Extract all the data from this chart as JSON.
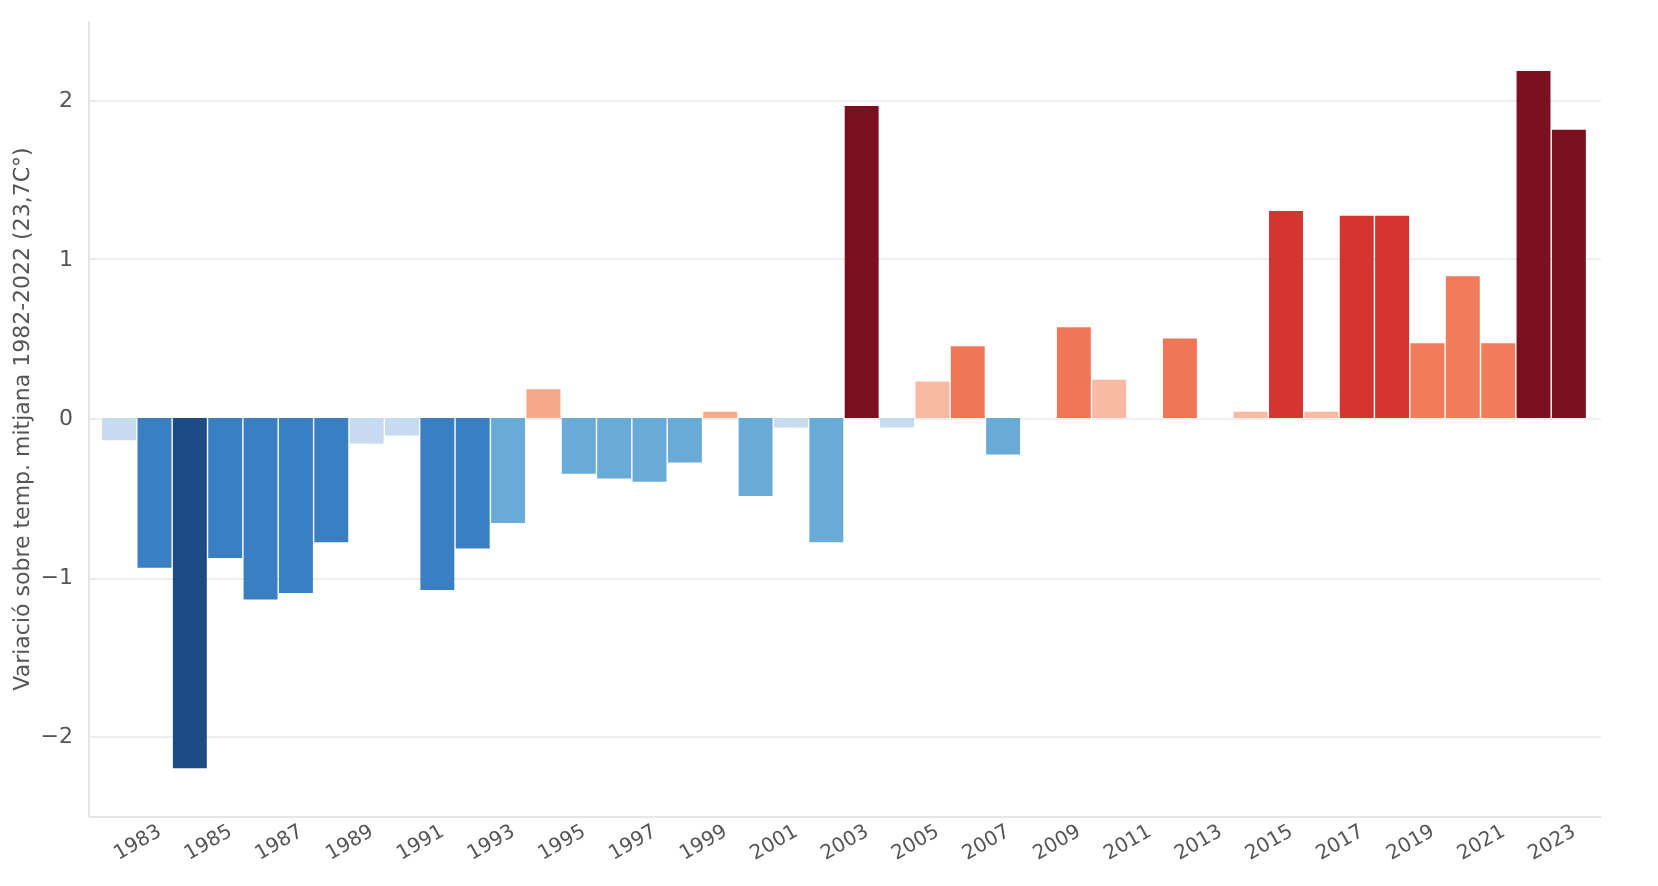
{
  "chart_data": {
    "type": "bar",
    "ylabel": "Variació sobre temp. mitjana 1982-2022 (23,7C°)",
    "categories": [
      null,
      "1983",
      null,
      "1985",
      null,
      "1987",
      null,
      "1989",
      null,
      "1991",
      null,
      "1993",
      null,
      "1995",
      null,
      "1997",
      null,
      "1999",
      null,
      "2001",
      null,
      "2003",
      null,
      "2005",
      null,
      "2007",
      null,
      "2009",
      null,
      "2011",
      null,
      "2013",
      null,
      "2015",
      null,
      "2017",
      null,
      "2019",
      null,
      "2021",
      null,
      "2023"
    ],
    "values": [
      -0.14,
      -0.94,
      -2.2,
      -0.88,
      -1.14,
      -1.1,
      -0.78,
      -0.16,
      -0.11,
      -1.08,
      -0.82,
      -0.66,
      0.18,
      -0.35,
      -0.38,
      -0.4,
      -0.28,
      0.04,
      -0.49,
      -0.06,
      -0.78,
      1.96,
      -0.06,
      0.23,
      0.45,
      -0.23,
      0,
      0.57,
      0.24,
      null,
      0.5,
      null,
      0.04,
      1.3,
      0.04,
      1.27,
      1.27,
      0.47,
      0.89,
      0.47,
      2.18,
      1.81
    ],
    "colors": [
      "#c6dbef",
      "#3a7fc1",
      "#1e4a86",
      "#3a7fc1",
      "#3a7fc1",
      "#3a7fc1",
      "#3a7fc1",
      "#c6dbef",
      "#c6dbef",
      "#3a7fc1",
      "#3a7fc1",
      "#6aaad6",
      "#f4a98a",
      "#6aaad6",
      "#6aaad6",
      "#6aaad6",
      "#6aaad6",
      "#f4a98a",
      "#6aaad6",
      "#c6dbef",
      "#6aaad6",
      "#7a1020",
      "#c6dbef",
      "#f7bba4",
      "#ef7656",
      "#6aaad6",
      "#f7bba4",
      "#ef7656",
      "#f7bba4",
      "#c6dbef",
      "#ef7656",
      "#c6dbef",
      "#f7bba4",
      "#d6342e",
      "#f7bba4",
      "#d6342e",
      "#d6342e",
      "#f17c5c",
      "#f17c5c",
      "#f17c5c",
      "#7a1020",
      "#7a1020"
    ],
    "ylim": [
      -2.5,
      2.5
    ],
    "yticks": [
      -2,
      -1,
      0,
      1,
      2
    ],
    "grid": "y"
  }
}
